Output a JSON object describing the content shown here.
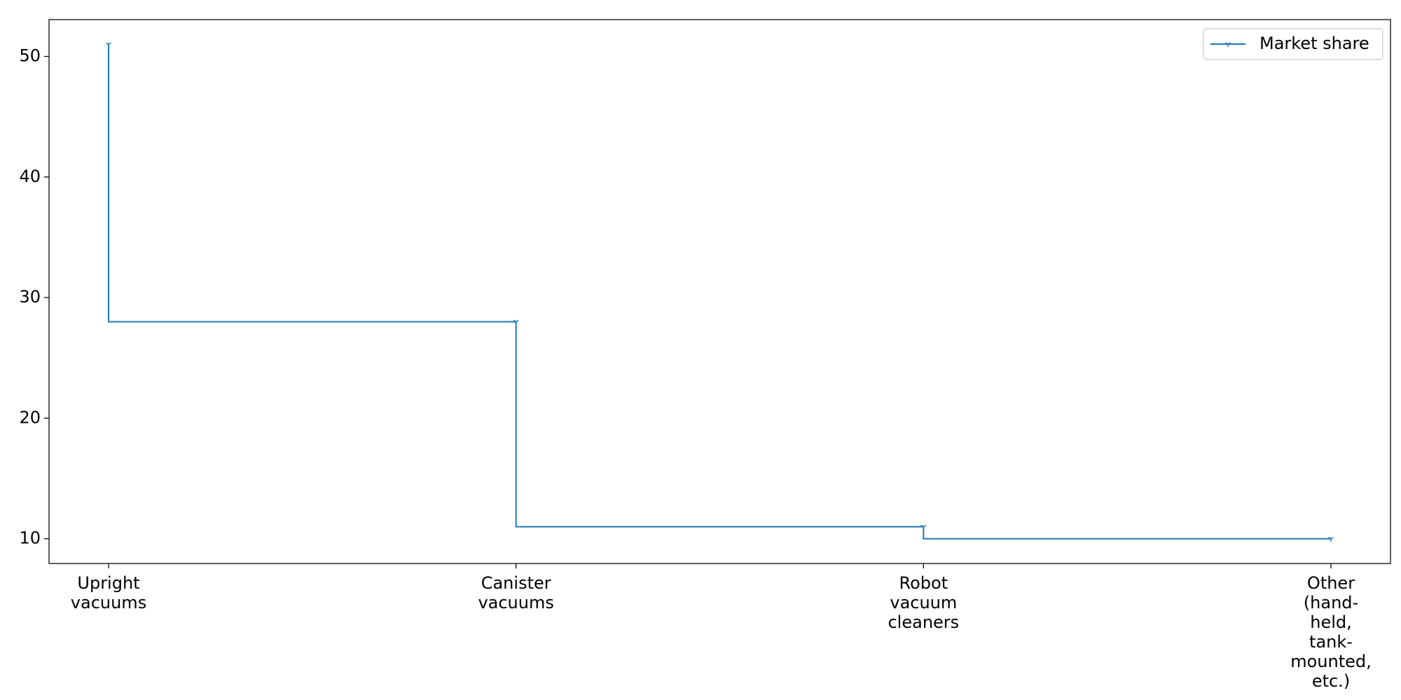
{
  "chart_data": {
    "type": "line",
    "step": "pre",
    "title": "",
    "xlabel": "",
    "ylabel": "",
    "categories": [
      "Upright vacuums",
      "Canister vacuums",
      "Robot vacuum cleaners",
      "Other (hand-held, tank-mounted, etc.)"
    ],
    "category_label_lines": [
      [
        "Upright",
        "vacuums"
      ],
      [
        "Canister",
        "vacuums"
      ],
      [
        "Robot",
        "vacuum",
        "cleaners"
      ],
      [
        "Other",
        "(hand-",
        "held,",
        "tank-",
        "mounted,",
        "etc.)"
      ]
    ],
    "series": [
      {
        "name": "Market share",
        "values": [
          51,
          28,
          11,
          10
        ],
        "color": "#1f77b4",
        "marker": "tri-down"
      }
    ],
    "ylim": [
      7.95,
      53.05
    ],
    "yticks": [
      10,
      20,
      30,
      40,
      50
    ],
    "grid": false,
    "legend": {
      "position": "top-right",
      "entries": [
        "Market share"
      ]
    }
  }
}
